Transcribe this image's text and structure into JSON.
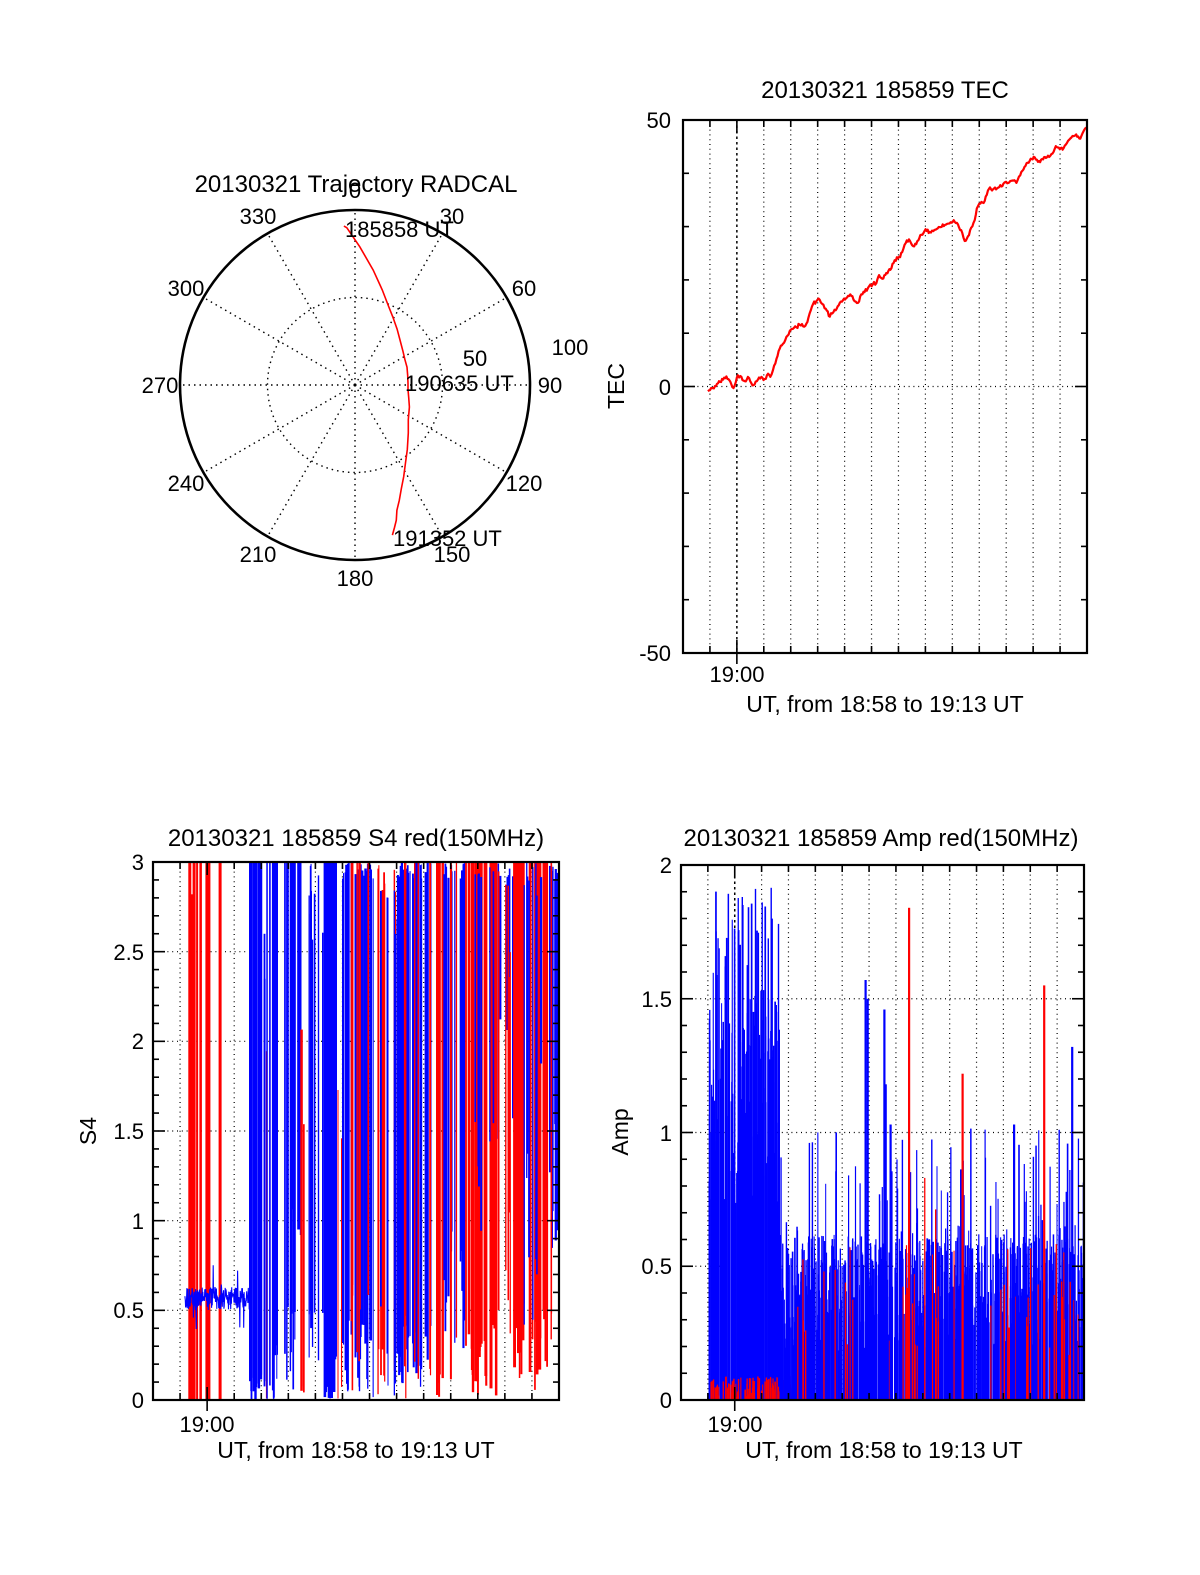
{
  "colors": {
    "red": "#ff0000",
    "blue": "#0000ff",
    "axis": "#000000",
    "background": "#ffffff"
  },
  "chart_data": [
    {
      "id": "trajectory",
      "type": "polar-line",
      "title": "20130321 Trajectory RADCAL",
      "azimuth_labels": [
        "0",
        "30",
        "60",
        "90",
        "120",
        "150",
        "180",
        "210",
        "240",
        "270",
        "300",
        "330"
      ],
      "radial_tick_labels": [
        "50",
        "100"
      ],
      "r_range": [
        0,
        100
      ],
      "inner_circle_value": 50,
      "line_color": "#ff0000",
      "annotations": [
        "185858 UT",
        "190635 UT",
        "191352 UT"
      ],
      "trajectory_az_r": [
        [
          -4,
          91
        ],
        [
          -3,
          90
        ],
        [
          2,
          79
        ],
        [
          9,
          66.5
        ],
        [
          16,
          56.5
        ],
        [
          23,
          49
        ],
        [
          29,
          44.5
        ],
        [
          37,
          40
        ],
        [
          45,
          36.4
        ],
        [
          55,
          33.5
        ],
        [
          63,
          32
        ],
        [
          71,
          31.4
        ],
        [
          80,
          30.6
        ],
        [
          88,
          30.3
        ],
        [
          95,
          30.4
        ],
        [
          103,
          31.5
        ],
        [
          112,
          33.5
        ],
        [
          123,
          36.3
        ],
        [
          132,
          41
        ],
        [
          141,
          47.5
        ],
        [
          147,
          53
        ],
        [
          152,
          59.3
        ],
        [
          156,
          65
        ],
        [
          159,
          70.6
        ],
        [
          161.5,
          75.5
        ],
        [
          163,
          80.8
        ],
        [
          164.5,
          84.5
        ],
        [
          166,
          88.4
        ]
      ]
    },
    {
      "id": "tec",
      "type": "line",
      "title": "20130321 185859 TEC",
      "ylabel": "TEC",
      "xlabel": "UT, from 18:58 to 19:13 UT",
      "xtick_label": "19:00",
      "ytick_labels": [
        "50",
        "0",
        "-50"
      ],
      "ylim": [
        -50,
        50
      ],
      "x_range_minutes": [
        0,
        15
      ],
      "line_color": "#ff0000",
      "seed": 42,
      "noise_amplitude": 0.7,
      "points": [
        [
          0.93,
          -0.9
        ],
        [
          1.11,
          -0.3
        ],
        [
          1.3,
          0.6
        ],
        [
          1.49,
          1.3
        ],
        [
          1.61,
          1.9
        ],
        [
          1.73,
          1.1
        ],
        [
          1.83,
          -0.1
        ],
        [
          1.92,
          0.2
        ],
        [
          2.04,
          2.1
        ],
        [
          2.17,
          1.8
        ],
        [
          2.29,
          1.0
        ],
        [
          2.41,
          1.8
        ],
        [
          2.54,
          0.6
        ],
        [
          2.66,
          0.4
        ],
        [
          2.78,
          1.3
        ],
        [
          2.91,
          1.8
        ],
        [
          3.03,
          1.4
        ],
        [
          3.16,
          2.4
        ],
        [
          3.24,
          1.8
        ],
        [
          3.34,
          3.1
        ],
        [
          3.47,
          5.2
        ],
        [
          3.59,
          7.1
        ],
        [
          3.71,
          8.0
        ],
        [
          3.84,
          9.3
        ],
        [
          3.96,
          10.4
        ],
        [
          4.08,
          10.8
        ],
        [
          4.21,
          11.1
        ],
        [
          4.33,
          11.6
        ],
        [
          4.46,
          11.3
        ],
        [
          4.58,
          11.8
        ],
        [
          4.7,
          13.7
        ],
        [
          4.83,
          15.5
        ],
        [
          4.95,
          16.0
        ],
        [
          5.07,
          16.3
        ],
        [
          5.17,
          15.5
        ],
        [
          5.3,
          14.6
        ],
        [
          5.45,
          13.1
        ],
        [
          5.54,
          13.7
        ],
        [
          5.67,
          14.3
        ],
        [
          5.82,
          15.7
        ],
        [
          5.94,
          16.2
        ],
        [
          6.09,
          16.7
        ],
        [
          6.25,
          17.0
        ],
        [
          6.37,
          16.0
        ],
        [
          6.5,
          15.7
        ],
        [
          6.62,
          17.3
        ],
        [
          6.74,
          17.7
        ],
        [
          6.91,
          18.8
        ],
        [
          7.05,
          19.2
        ],
        [
          7.18,
          19.4
        ],
        [
          7.28,
          20.9
        ],
        [
          7.4,
          20.2
        ],
        [
          7.55,
          21.3
        ],
        [
          7.7,
          21.9
        ],
        [
          7.86,
          23.7
        ],
        [
          8.02,
          24.3
        ],
        [
          8.14,
          25.2
        ],
        [
          8.27,
          26.9
        ],
        [
          8.39,
          27.6
        ],
        [
          8.51,
          26.5
        ],
        [
          8.66,
          26.7
        ],
        [
          8.81,
          28.4
        ],
        [
          8.97,
          29.2
        ],
        [
          9.16,
          29.0
        ],
        [
          9.34,
          29.4
        ],
        [
          9.53,
          29.9
        ],
        [
          9.72,
          30.3
        ],
        [
          9.9,
          30.6
        ],
        [
          10.05,
          31.2
        ],
        [
          10.21,
          30.4
        ],
        [
          10.37,
          28.8
        ],
        [
          10.46,
          27.3
        ],
        [
          10.58,
          28.2
        ],
        [
          10.7,
          29.8
        ],
        [
          10.83,
          31.2
        ],
        [
          10.91,
          33.4
        ],
        [
          11.04,
          34.3
        ],
        [
          11.2,
          34.8
        ],
        [
          11.36,
          37.1
        ],
        [
          11.51,
          37.0
        ],
        [
          11.7,
          37.3
        ],
        [
          11.86,
          37.6
        ],
        [
          12.0,
          38.4
        ],
        [
          12.19,
          38.6
        ],
        [
          12.38,
          38.2
        ],
        [
          12.52,
          39.6
        ],
        [
          12.68,
          41.2
        ],
        [
          12.87,
          42.3
        ],
        [
          13.06,
          43.0
        ],
        [
          13.22,
          42.3
        ],
        [
          13.37,
          42.6
        ],
        [
          13.51,
          43.0
        ],
        [
          13.68,
          43.6
        ],
        [
          13.84,
          45.1
        ],
        [
          13.99,
          44.5
        ],
        [
          14.13,
          44.7
        ],
        [
          14.3,
          46.1
        ],
        [
          14.46,
          47.0
        ],
        [
          14.6,
          47.3
        ],
        [
          14.75,
          46.5
        ],
        [
          14.88,
          48.0
        ],
        [
          14.98,
          48.6
        ]
      ]
    },
    {
      "id": "s4",
      "type": "spike-bars",
      "title": "20130321 185859 S4 red(150MHz)",
      "ylabel": "S4",
      "xlabel": "UT, from 18:58 to 19:13 UT",
      "xtick_label": "19:00",
      "ytick_labels": [
        "3",
        "2.5",
        "2",
        "1.5",
        "1",
        "0.5",
        "0"
      ],
      "ylim": [
        0,
        3
      ],
      "seed": 1234567,
      "red_bars": [
        [
          1.36,
          3,
          3.0
        ],
        [
          1.44,
          3,
          2.82
        ],
        [
          1.52,
          3,
          3.0
        ],
        [
          1.63,
          2,
          3.0
        ],
        [
          1.76,
          2.5,
          3.0
        ],
        [
          2.03,
          5,
          3.0
        ],
        [
          2.48,
          3,
          3.0
        ]
      ],
      "noise_line": {
        "t0": 1.18,
        "t1": 3.6,
        "mean": 0.565,
        "amp": 0.065
      },
      "segments": [
        {
          "c": "b",
          "t0": 3.58,
          "t1": 4.02,
          "n": 30,
          "top": [
            3,
            3
          ],
          "bot": [
            0,
            0.15
          ],
          "w": [
            1,
            2.5
          ]
        },
        {
          "c": "b",
          "t0": 4.02,
          "t1": 4.18,
          "n": 12,
          "top": [
            2.3,
            2.65
          ],
          "bot": [
            0,
            0.2
          ],
          "w": [
            1,
            2
          ]
        },
        {
          "c": "r",
          "t0": 4.12,
          "t1": 4.22,
          "n": 8,
          "top": [
            1.6,
            1.95
          ],
          "bot": [
            0,
            0.05
          ],
          "w": [
            1,
            1.5
          ]
        },
        {
          "c": "b",
          "t0": 4.2,
          "t1": 4.62,
          "n": 22,
          "top": [
            3,
            3
          ],
          "bot": [
            0,
            0.35
          ],
          "w": [
            1,
            2
          ]
        },
        {
          "c": "b",
          "t0": 4.75,
          "t1": 5.25,
          "n": 20,
          "top": [
            3,
            3
          ],
          "bot": [
            0,
            0.55
          ],
          "w": [
            1,
            2
          ]
        },
        {
          "c": "b",
          "t0": 5.1,
          "t1": 5.5,
          "n": 14,
          "top": [
            3,
            3
          ],
          "bot": [
            0.9,
            1.35
          ],
          "w": [
            1.5,
            3
          ]
        },
        {
          "c": "r",
          "t0": 5.38,
          "t1": 5.72,
          "n": 10,
          "top": [
            1.5,
            2.4
          ],
          "bot": [
            0,
            0.1
          ],
          "w": [
            1.5,
            2.5
          ]
        },
        {
          "c": "b",
          "t0": 5.75,
          "t1": 6.3,
          "n": 16,
          "top": [
            2.5,
            3
          ],
          "bot": [
            0.2,
            0.75
          ],
          "w": [
            1,
            2
          ]
        },
        {
          "c": "b",
          "t0": 6.3,
          "t1": 6.75,
          "n": 30,
          "top": [
            3,
            3
          ],
          "bot": [
            0,
            0.25
          ],
          "w": [
            1.5,
            3
          ]
        },
        {
          "c": "r",
          "t0": 6.78,
          "t1": 7.0,
          "n": 8,
          "top": [
            1.4,
            1.75
          ],
          "bot": [
            0,
            0.1
          ],
          "w": [
            1,
            2
          ]
        },
        {
          "c": "b",
          "t0": 7.0,
          "t1": 8.2,
          "n": 26,
          "top": [
            2.9,
            3
          ],
          "bot": [
            0,
            0.45
          ],
          "w": [
            1,
            2.5
          ]
        },
        {
          "c": "r",
          "t0": 7.1,
          "t1": 8.3,
          "n": 7,
          "top": [
            3,
            3
          ],
          "bot": [
            0,
            0.85
          ],
          "w": [
            1,
            1.8
          ]
        },
        {
          "c": "r",
          "t0": 8.3,
          "t1": 9.1,
          "n": 12,
          "top": [
            2.8,
            3
          ],
          "bot": [
            0,
            0.35
          ],
          "w": [
            1,
            2
          ]
        },
        {
          "c": "b",
          "t0": 8.3,
          "t1": 9.1,
          "n": 10,
          "top": [
            2.5,
            3
          ],
          "bot": [
            0,
            0.55
          ],
          "w": [
            1,
            2
          ]
        },
        {
          "c": "b",
          "t0": 9.05,
          "t1": 10.3,
          "n": 24,
          "top": [
            2.9,
            3
          ],
          "bot": [
            0,
            0.55
          ],
          "w": [
            1,
            2.5
          ]
        },
        {
          "c": "r",
          "t0": 9.2,
          "t1": 10.3,
          "n": 6,
          "top": [
            3,
            3
          ],
          "bot": [
            0,
            0.25
          ],
          "w": [
            1,
            1.6
          ]
        },
        {
          "c": "r",
          "t0": 10.3,
          "t1": 10.75,
          "n": 14,
          "top": [
            3,
            3
          ],
          "bot": [
            0,
            0.25
          ],
          "w": [
            1.5,
            2.5
          ]
        },
        {
          "c": "b",
          "t0": 10.75,
          "t1": 11.55,
          "n": 18,
          "top": [
            2.9,
            3
          ],
          "bot": [
            0.1,
            0.95
          ],
          "w": [
            1,
            2.2
          ]
        },
        {
          "c": "r",
          "t0": 11.0,
          "t1": 11.25,
          "n": 8,
          "top": [
            3,
            3
          ],
          "bot": [
            0,
            0.35
          ],
          "w": [
            1,
            2
          ]
        },
        {
          "c": "r",
          "t0": 11.55,
          "t1": 12.7,
          "n": 22,
          "top": [
            3,
            3
          ],
          "bot": [
            0,
            0.45
          ],
          "w": [
            1.5,
            3
          ]
        },
        {
          "c": "b",
          "t0": 11.9,
          "t1": 12.6,
          "n": 8,
          "top": [
            2.9,
            3
          ],
          "bot": [
            0.8,
            1.65
          ],
          "w": [
            1,
            2
          ]
        },
        {
          "c": "b",
          "t0": 12.65,
          "t1": 13.3,
          "n": 9,
          "top": [
            2.9,
            3
          ],
          "bot": [
            1.2,
            2.25
          ],
          "w": [
            1,
            2
          ]
        },
        {
          "c": "r",
          "t0": 12.65,
          "t1": 13.35,
          "n": 8,
          "top": [
            2.3,
            3
          ],
          "bot": [
            0,
            1.2
          ],
          "w": [
            1,
            1.8
          ]
        },
        {
          "c": "r",
          "t0": 13.35,
          "t1": 14.35,
          "n": 20,
          "top": [
            3,
            3
          ],
          "bot": [
            0,
            0.65
          ],
          "w": [
            1.5,
            3
          ]
        },
        {
          "c": "b",
          "t0": 13.5,
          "t1": 14.3,
          "n": 9,
          "top": [
            2.8,
            3
          ],
          "bot": [
            0.35,
            1.55
          ],
          "w": [
            1,
            2
          ]
        },
        {
          "c": "b",
          "t0": 14.3,
          "t1": 15.0,
          "n": 16,
          "top": [
            2.9,
            3
          ],
          "bot": [
            0.8,
            1.95
          ],
          "w": [
            1,
            2.2
          ]
        },
        {
          "c": "r",
          "t0": 14.35,
          "t1": 15.0,
          "n": 10,
          "top": [
            3,
            3
          ],
          "bot": [
            0,
            0.55
          ],
          "w": [
            1,
            2
          ]
        }
      ]
    },
    {
      "id": "amp",
      "type": "spike-bars",
      "title": "20130321 185859 Amp red(150MHz)",
      "ylabel": "Amp",
      "xlabel": "UT, from 18:58 to 19:13 UT",
      "xtick_label": "19:00",
      "ytick_labels": [
        "2",
        "1.5",
        "1",
        "0.5",
        "0"
      ],
      "ylim": [
        0,
        2
      ],
      "seed": 987654,
      "segments": [
        {
          "c": "b",
          "t0": 1.05,
          "t1": 3.67,
          "n": 80,
          "top": [
            0.7,
            1.55
          ],
          "top2": [
            1.55,
            1.92
          ],
          "p2": 0.15,
          "bot": [
            0,
            0
          ],
          "w": [
            1,
            1.8
          ]
        },
        {
          "c": "r",
          "t0": 1.1,
          "t1": 4.85,
          "n": 38,
          "top": [
            0.01,
            0.09
          ],
          "bot": [
            0,
            0
          ],
          "w": [
            1,
            1.6
          ]
        },
        {
          "c": "b",
          "t0": 3.67,
          "t1": 15.0,
          "n": 75,
          "top": [
            0.18,
            0.62
          ],
          "top2": [
            0.62,
            1.02
          ],
          "p2": 0.08,
          "bot": [
            0,
            0
          ],
          "w": [
            1,
            1.6
          ]
        },
        {
          "c": "r",
          "t0": 4.3,
          "t1": 15.0,
          "n": 4,
          "top": [
            0.15,
            0.6
          ],
          "bot": [
            0,
            0
          ],
          "w": [
            1,
            1.5
          ]
        },
        {
          "c": "r",
          "t0": 8.35,
          "t1": 9.55,
          "n": 7,
          "top": [
            0.3,
            0.9
          ],
          "bot": [
            0,
            0
          ],
          "w": [
            1,
            1.6
          ]
        }
      ],
      "blue_spikes": [
        [
          6.87,
          1.57
        ],
        [
          6.95,
          1.5
        ],
        [
          7.57,
          1.46
        ],
        [
          7.62,
          1.18
        ],
        [
          7.8,
          1.03
        ],
        [
          12.4,
          1.03
        ],
        [
          14.56,
          1.32
        ]
      ],
      "red_spikes": [
        [
          8.49,
          1.84
        ],
        [
          10.48,
          1.22
        ],
        [
          13.52,
          1.55
        ]
      ]
    }
  ]
}
